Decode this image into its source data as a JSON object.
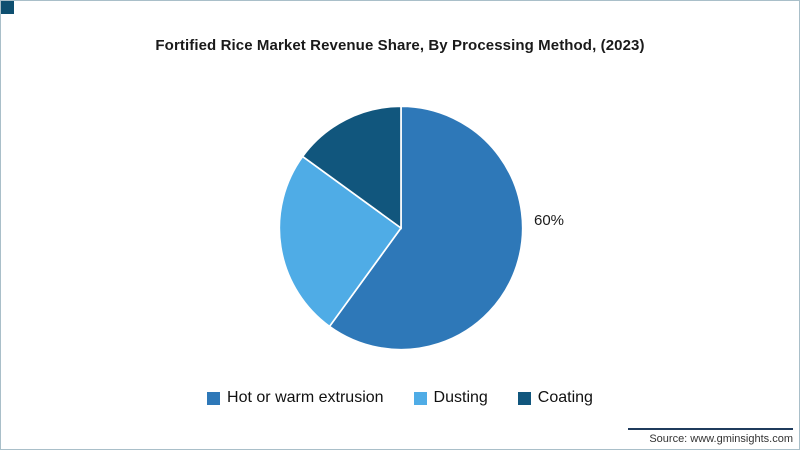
{
  "page": {
    "source_text": "Source: www.gminsights.com"
  },
  "chart_data": {
    "type": "pie",
    "title": "Fortified Rice Market Revenue Share, By Processing Method, (2023)",
    "legend_position": "bottom",
    "direction": "clockwise",
    "start_angle": "top",
    "slices": [
      {
        "label": "Hot or warm extrusion",
        "value": 60,
        "percent_label": "60%",
        "color": "#2e78b8"
      },
      {
        "label": "Dusting",
        "value": 25,
        "percent_label": "",
        "color": "#4face6"
      },
      {
        "label": "Coating",
        "value": 15,
        "percent_label": "",
        "color": "#11567d"
      }
    ],
    "data_label_shown": "60%",
    "colors": {
      "corner_mark": "#0e4f70",
      "source_rule": "#1f3b5c"
    }
  }
}
